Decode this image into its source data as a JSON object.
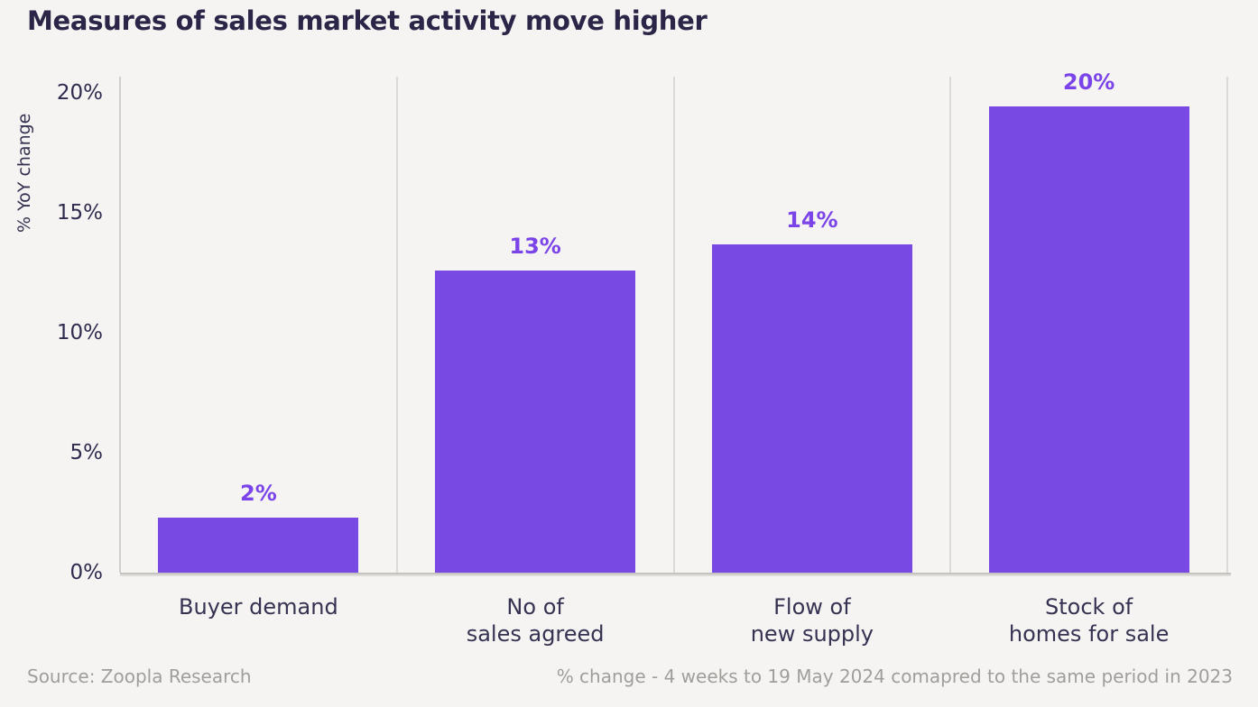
{
  "title": "Measures of sales market activity move higher",
  "footer": {
    "source": "Source: Zoopla Research",
    "note": "% change - 4 weeks to 19 May 2024 comapred to the same period in 2023"
  },
  "chart_data": {
    "type": "bar",
    "title": "Measures of sales market activity move higher",
    "xlabel": "",
    "ylabel": "% YoY change",
    "categories": [
      "Buyer demand",
      "No of sales agreed",
      "Flow of new supply",
      "Stock of homes for sale"
    ],
    "category_lines": [
      [
        "Buyer demand"
      ],
      [
        "No of",
        "sales agreed"
      ],
      [
        "Flow of",
        "new supply"
      ],
      [
        "Stock of",
        "homes for sale"
      ]
    ],
    "values": [
      2,
      13,
      14,
      20
    ],
    "value_labels": [
      "2%",
      "13%",
      "14%",
      "20%"
    ],
    "bar_heights_pct": [
      2.3,
      12.6,
      13.7,
      19.45
    ],
    "yticks": [
      0,
      5,
      10,
      15,
      20
    ],
    "ytick_labels": [
      "0%",
      "5%",
      "10%",
      "15%",
      "20%"
    ],
    "ylim": [
      0,
      20.7
    ],
    "grid": "vertical-category-separators",
    "legend_position": "none",
    "colors": {
      "bar": "#7849e3",
      "value_label": "#7b44e8",
      "title": "#2b2547",
      "axis_text": "#2f2b4e",
      "category_text": "#363252",
      "separator": "#dbdad7",
      "axis_line": "#c4c3c0",
      "background": "#f5f4f2",
      "footer_text": "#a09e9b"
    }
  }
}
